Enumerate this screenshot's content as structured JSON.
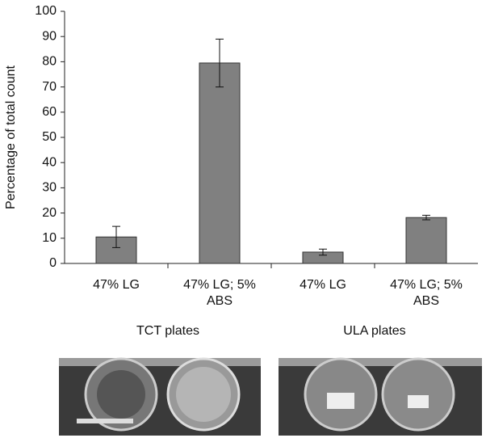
{
  "chart_data": {
    "type": "bar",
    "y_label": "Percentage of total count",
    "categories": [
      "47% LG",
      "47% LG; 5% ABS",
      "47% LG",
      "47% LG; 5% ABS"
    ],
    "group_labels": [
      "TCT plates",
      "ULA plates"
    ],
    "values": [
      10.5,
      79.5,
      4.5,
      18.2
    ],
    "errors": [
      4.2,
      9.5,
      1.2,
      0.9
    ],
    "color": "#808080",
    "ylim": [
      0,
      100
    ],
    "yticks": [
      0,
      10,
      20,
      30,
      40,
      50,
      60,
      70,
      80,
      90,
      100
    ]
  }
}
